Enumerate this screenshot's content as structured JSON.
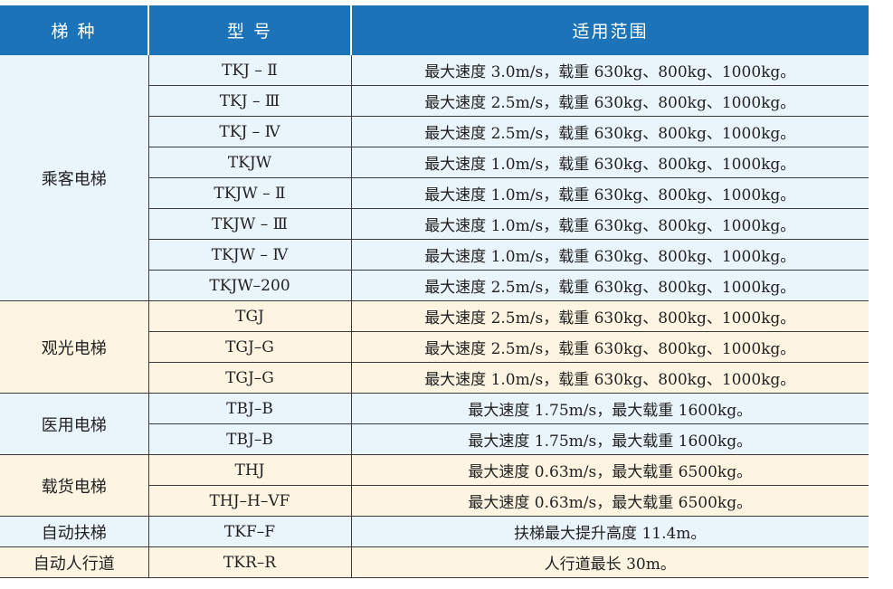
{
  "header": {
    "col_type": "梯  种",
    "col_model": "型  号",
    "col_range": "适用范围"
  },
  "groups": [
    {
      "category": "乘客电梯",
      "rows": [
        {
          "model": "TKJ – Ⅱ",
          "range": "最大速度 3.0m/s，载重 630kg、800kg、1000kg。"
        },
        {
          "model": "TKJ – Ⅲ",
          "range": "最大速度 2.5m/s，载重 630kg、800kg、1000kg。"
        },
        {
          "model": "TKJ – Ⅳ",
          "range": "最大速度 2.5m/s，载重 630kg、800kg、1000kg。"
        },
        {
          "model": "TKJW",
          "range": "最大速度 1.0m/s，载重 630kg、800kg、1000kg。"
        },
        {
          "model": "TKJW – Ⅱ",
          "range": "最大速度 1.0m/s，载重 630kg、800kg、1000kg。"
        },
        {
          "model": "TKJW – Ⅲ",
          "range": "最大速度 1.0m/s，载重 630kg、800kg、1000kg。"
        },
        {
          "model": "TKJW – Ⅳ",
          "range": "最大速度 1.0m/s，载重 630kg、800kg、1000kg。"
        },
        {
          "model": "TKJW–200",
          "range": "最大速度 2.5m/s，载重 630kg、800kg、1000kg。"
        }
      ]
    },
    {
      "category": "观光电梯",
      "rows": [
        {
          "model": "TGJ",
          "range": "最大速度 2.5m/s，载重 630kg、800kg、1000kg。"
        },
        {
          "model": "TGJ–G",
          "range": "最大速度 2.5m/s，载重 630kg、800kg、1000kg。"
        },
        {
          "model": "TGJ–G",
          "range": "最大速度 1.0m/s，载重 630kg、800kg、1000kg。"
        }
      ]
    },
    {
      "category": "医用电梯",
      "rows": [
        {
          "model": "TBJ–B",
          "range": "最大速度 1.75m/s，最大载重 1600kg。"
        },
        {
          "model": "TBJ–B",
          "range": "最大速度 1.75m/s，最大载重 1600kg。"
        }
      ]
    },
    {
      "category": "载货电梯",
      "rows": [
        {
          "model": "THJ",
          "range": "最大速度 0.63m/s，最大载重 6500kg。"
        },
        {
          "model": "THJ–H–VF",
          "range": "最大速度 0.63m/s，最大载重 6500kg。"
        }
      ]
    },
    {
      "category": "自动扶梯",
      "rows": [
        {
          "model": "TKF–F",
          "range": "扶梯最大提升高度 11.4m。"
        }
      ]
    },
    {
      "category": "自动人行道",
      "rows": [
        {
          "model": "TKR–R",
          "range": "人行道最长 30m。"
        }
      ]
    }
  ],
  "colors": {
    "header_bg": "#1c73b8",
    "blue_band": "#e9f4fb",
    "yellow_band": "#fdf5e2"
  }
}
